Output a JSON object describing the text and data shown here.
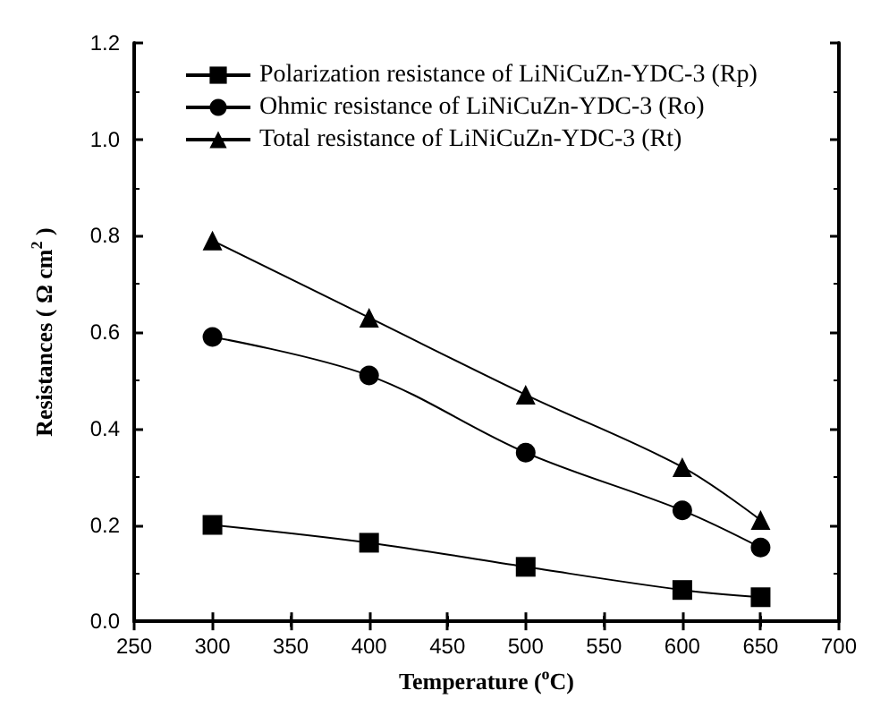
{
  "chart_data": {
    "type": "line",
    "xlabel": "Temperature ($^{o}$C)",
    "ylabel": "Resistances ( Ω cm$^{2}$ )",
    "x": [
      300,
      400,
      500,
      600,
      650
    ],
    "series": [
      {
        "name": "Polarization resistance of LiNiCuZn-YDC-3 (Rp)",
        "color": "#000000",
        "marker": "square",
        "values": [
          0.2,
          0.163,
          0.113,
          0.065,
          0.05
        ]
      },
      {
        "name": "Ohmic resistance of LiNiCuZn-YDC-3 (Ro)",
        "color": "#000000",
        "marker": "circle",
        "values": [
          0.59,
          0.51,
          0.35,
          0.23,
          0.153
        ]
      },
      {
        "name": "Total resistance of LiNiCuZn-YDC-3 (Rt)",
        "color": "#000000",
        "marker": "triangle",
        "values": [
          0.79,
          0.63,
          0.47,
          0.32,
          0.21
        ]
      }
    ],
    "xlim": [
      250,
      700
    ],
    "xticks": [
      250,
      300,
      350,
      400,
      450,
      500,
      550,
      600,
      650,
      700
    ],
    "ylim": [
      0,
      1.2
    ],
    "yticks": [
      {
        "value": 0,
        "label": "0.0"
      },
      0.2,
      0.4,
      0.6,
      0.8,
      {
        "value": 1,
        "label": "1.0"
      },
      1.2
    ],
    "grid": false,
    "legend": "top left",
    "line_style": "solid"
  }
}
